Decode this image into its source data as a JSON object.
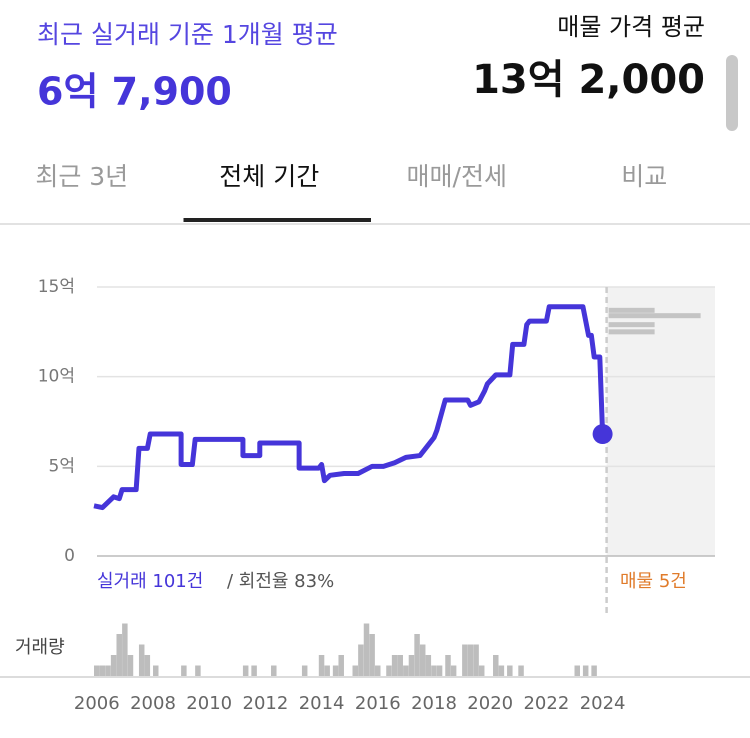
{
  "header": {
    "left_title": "최근 실거래 기준 1개월 평균",
    "left_value": "6억 7,900",
    "right_title": "매물 가격 평균",
    "right_value": "13억 2,000"
  },
  "tabs": [
    "최근 3년",
    "전체 기간",
    "매매/전세",
    "비교"
  ],
  "active_tab": 1,
  "chart_data": [
    {
      "type": "line",
      "x": [
        2005.9,
        2006.2,
        2006.4,
        2006.6,
        2006.8,
        2006.9,
        2007.4,
        2007.5,
        2007.8,
        2007.9,
        2009.0,
        2009.0,
        2009.4,
        2009.5,
        2011.2,
        2011.2,
        2011.8,
        2011.8,
        2013.2,
        2013.2,
        2013.9,
        2014.0,
        2014.1,
        2014.3,
        2014.8,
        2015.3,
        2015.8,
        2016.2,
        2016.6,
        2017.0,
        2017.5,
        2017.8,
        2018.0,
        2018.1,
        2018.4,
        2018.9,
        2019.2,
        2019.3,
        2019.6,
        2019.8,
        2019.9,
        2020.2,
        2020.7,
        2020.8,
        2021.2,
        2021.3,
        2021.4,
        2022.0,
        2022.1,
        2023.3,
        2023.5,
        2023.6,
        2023.7,
        2023.9,
        2024.0
      ],
      "series": [
        {
          "color": "#4535d9",
          "values": [
            2.8,
            2.7,
            3.0,
            3.3,
            3.2,
            3.7,
            3.7,
            6.0,
            6.0,
            6.8,
            6.8,
            5.1,
            5.1,
            6.5,
            6.5,
            5.6,
            5.6,
            6.3,
            6.3,
            4.9,
            4.9,
            5.1,
            4.2,
            4.5,
            4.6,
            4.6,
            5.0,
            5.0,
            5.2,
            5.5,
            5.6,
            6.2,
            6.6,
            7.0,
            8.7,
            8.7,
            8.7,
            8.4,
            8.6,
            9.2,
            9.6,
            10.1,
            10.1,
            11.8,
            11.8,
            12.9,
            13.1,
            13.1,
            13.9,
            13.9,
            12.3,
            12.3,
            11.1,
            11.1,
            6.8
          ]
        }
      ],
      "xlim": [
        2005.9,
        2028
      ],
      "ylim": [
        0,
        15
      ],
      "yticks": [
        0,
        {
          "value": 5,
          "label": "5억"
        },
        {
          "value": 10,
          "label": "10억"
        },
        {
          "value": 15,
          "label": "15억"
        }
      ],
      "grid": true,
      "annotations": [
        "실거래 101건",
        "/ 회전율 83%",
        "매물 5건"
      ],
      "listings": {
        "values": [
          13.7,
          13.4,
          12.9,
          12.5
        ],
        "counts": [
          1,
          2,
          1,
          1
        ],
        "color": "#c4c4c4"
      }
    },
    {
      "type": "bar",
      "title": "거래량",
      "color": "#bdbdbd",
      "x": [
        2005.9,
        2006.1,
        2006.3,
        2006.5,
        2006.7,
        2006.9,
        2007.1,
        2007.5,
        2007.7,
        2008.0,
        2009.0,
        2009.5,
        2011.2,
        2011.5,
        2012.2,
        2013.3,
        2013.9,
        2014.1,
        2014.4,
        2014.6,
        2015.1,
        2015.3,
        2015.5,
        2015.7,
        2015.9,
        2016.3,
        2016.5,
        2016.7,
        2016.9,
        2017.1,
        2017.3,
        2017.5,
        2017.7,
        2017.9,
        2018.1,
        2018.4,
        2018.6,
        2019.0,
        2019.2,
        2019.4,
        2019.6,
        2020.1,
        2020.3,
        2020.6,
        2021.0,
        2023.0,
        2023.3,
        2023.6
      ],
      "values": [
        1,
        1,
        1,
        2,
        4,
        5,
        2,
        3,
        2,
        1,
        1,
        1,
        1,
        1,
        1,
        1,
        2,
        1,
        1,
        2,
        1,
        3,
        5,
        4,
        1,
        1,
        2,
        2,
        1,
        2,
        4,
        3,
        2,
        1,
        1,
        2,
        1,
        3,
        3,
        3,
        1,
        2,
        1,
        1,
        1,
        1,
        1,
        1
      ],
      "xlim": [
        2005.9,
        2028
      ],
      "xticks": [
        2006,
        2008,
        2010,
        2012,
        2014,
        2016,
        2018,
        2020,
        2022,
        2024
      ]
    }
  ]
}
